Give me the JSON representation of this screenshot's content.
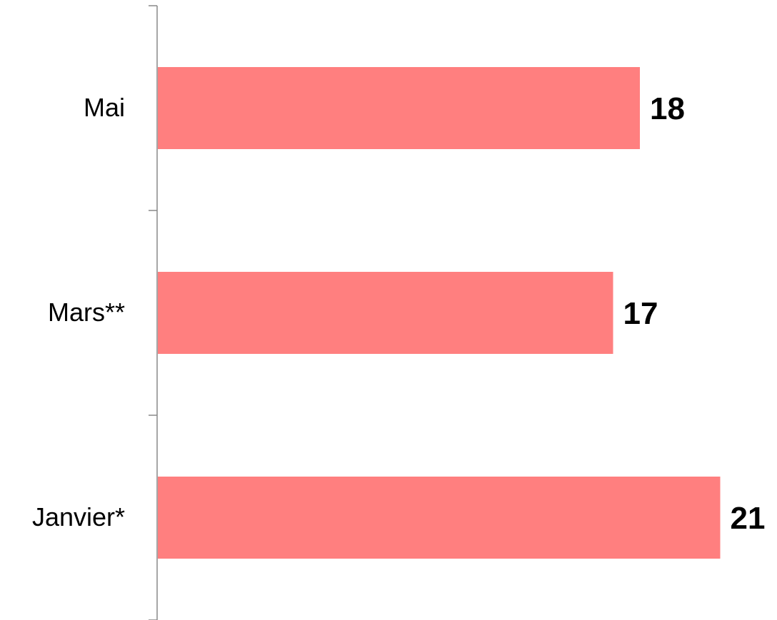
{
  "chart_data": {
    "type": "bar",
    "orientation": "horizontal",
    "categories": [
      "Mai",
      "Mars**",
      "Janvier*"
    ],
    "values": [
      18,
      17,
      21
    ],
    "color": "#ff7f7f"
  }
}
